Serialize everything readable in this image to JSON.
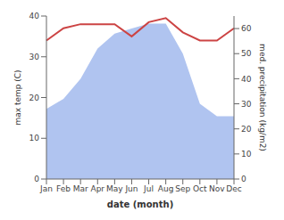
{
  "chart_data": {
    "type": "line",
    "xlabel": "date (month)",
    "ylabel": "max temp (C)",
    "y2label": "med. precipitation (kg/m2)",
    "categories": [
      "Jan",
      "Feb",
      "Mar",
      "Apr",
      "May",
      "Jun",
      "Jul",
      "Aug",
      "Sep",
      "Oct",
      "Nov",
      "Dec"
    ],
    "series": [
      {
        "type": "line",
        "color": "#cc4444",
        "values": [
          34,
          37,
          38,
          38,
          38,
          35,
          38.5,
          39.5,
          36,
          34,
          34,
          37
        ]
      },
      {
        "type": "area",
        "axis": "y2",
        "color": "#b0c4f0",
        "values": [
          28,
          32,
          40,
          52,
          58,
          60,
          62,
          62,
          50,
          30,
          25,
          25
        ]
      }
    ],
    "ylim": [
      0,
      40
    ],
    "yticks": [
      0,
      10,
      20,
      30,
      40
    ],
    "y2lim": [
      0,
      65
    ],
    "y2ticks": [
      0,
      10,
      20,
      30,
      40,
      50,
      60
    ],
    "grid": false
  }
}
